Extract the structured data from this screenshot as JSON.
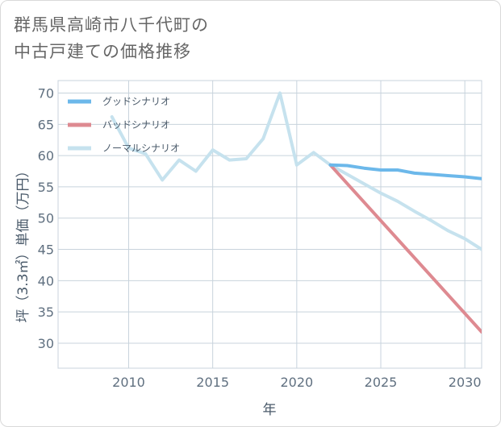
{
  "title_line1": "群馬県高崎市八千代町の",
  "title_line2": "中古戸建ての価格推移",
  "chart_data": {
    "type": "line",
    "title": "群馬県高崎市八千代町の中古戸建ての価格推移",
    "xlabel": "年",
    "ylabel": "坪（3.3㎡）単価（万円）",
    "xlim": [
      2005.8,
      2031
    ],
    "ylim": [
      26,
      72
    ],
    "x_ticks": [
      2010,
      2015,
      2020,
      2025,
      2030
    ],
    "y_ticks": [
      30,
      35,
      40,
      45,
      50,
      55,
      60,
      65,
      70
    ],
    "grid": true,
    "legend_position": "top-left",
    "series": [
      {
        "name": "グッドシナリオ",
        "color": "#6cb8ea",
        "x": [
          2022,
          2023,
          2024,
          2025,
          2026,
          2027,
          2028,
          2029,
          2030,
          2031
        ],
        "y": [
          58.5,
          58.4,
          58.0,
          57.7,
          57.7,
          57.2,
          57.0,
          56.8,
          56.6,
          56.3
        ]
      },
      {
        "name": "バッドシナリオ",
        "color": "#de8a91",
        "x": [
          2022,
          2031
        ],
        "y": [
          58.5,
          31.8
        ]
      },
      {
        "name": "ノーマルシナリオ",
        "color": "#c6e2ee",
        "x": [
          2009,
          2010,
          2011,
          2012,
          2013,
          2014,
          2015,
          2016,
          2017,
          2018,
          2019,
          2020,
          2021,
          2022,
          2023,
          2024,
          2025,
          2026,
          2027,
          2028,
          2029,
          2030,
          2031
        ],
        "y": [
          66.2,
          61.2,
          60.3,
          56.1,
          59.3,
          57.5,
          60.9,
          59.3,
          59.5,
          62.7,
          70.0,
          58.5,
          60.5,
          58.5,
          57.0,
          55.5,
          54.0,
          52.7,
          51.1,
          49.6,
          48.0,
          46.7,
          45.0
        ]
      }
    ]
  }
}
